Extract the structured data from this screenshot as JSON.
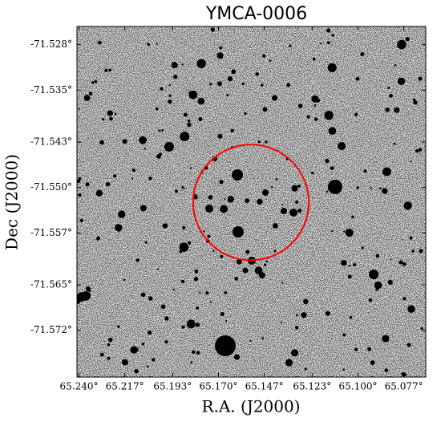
{
  "chart_data": {
    "type": "image",
    "title": "YMCA-0006",
    "xlabel": "R.A. (J2000)",
    "ylabel": "Dec (J2000)",
    "xlim": [
      65.241,
      65.066
    ],
    "ylim": [
      -71.5792,
      -71.5252
    ],
    "xticks": [
      {
        "value": 65.24,
        "label": "65.240°"
      },
      {
        "value": 65.217,
        "label": "65.217°"
      },
      {
        "value": 65.193,
        "label": "65.193°"
      },
      {
        "value": 65.17,
        "label": "65.170°"
      },
      {
        "value": 65.147,
        "label": "65.147°"
      },
      {
        "value": 65.123,
        "label": "65.123°"
      },
      {
        "value": 65.1,
        "label": "65.100°"
      },
      {
        "value": 65.077,
        "label": "65.077°"
      }
    ],
    "yticks": [
      {
        "value": -71.528,
        "label": "-71.528°"
      },
      {
        "value": -71.535,
        "label": "-71.535°"
      },
      {
        "value": -71.543,
        "label": "-71.543°"
      },
      {
        "value": -71.55,
        "label": "-71.550°"
      },
      {
        "value": -71.557,
        "label": "-71.557°"
      },
      {
        "value": -71.565,
        "label": "-71.565°"
      },
      {
        "value": -71.572,
        "label": "-71.572°"
      }
    ],
    "circle": {
      "x": 65.1537,
      "y": -71.5523,
      "r": 0.029,
      "color": "#ff0000"
    }
  }
}
